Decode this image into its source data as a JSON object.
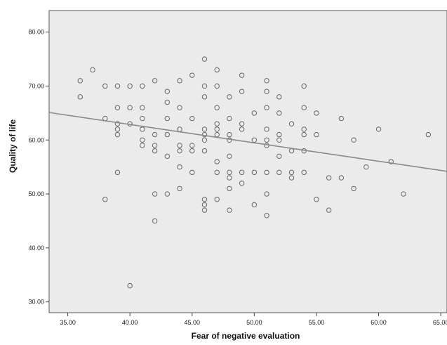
{
  "chart_data": {
    "type": "scatter",
    "title": "",
    "xlabel": "Fear of negative evaluation",
    "ylabel": "Quality of life",
    "xlim": [
      33.5,
      65.5
    ],
    "ylim": [
      28,
      84
    ],
    "x_ticks": [
      "35.00",
      "40.00",
      "45.00",
      "50.00",
      "55.00",
      "60.00",
      "65.00"
    ],
    "y_ticks": [
      "30.00",
      "40.00",
      "50.00",
      "60.00",
      "70.00",
      "80.00"
    ],
    "grid": false,
    "background_color": "#ebebeb",
    "marker_color": "#666666",
    "fit_line": {
      "x": [
        33.5,
        65.5
      ],
      "y": [
        65.1,
        54.2
      ]
    },
    "points": [
      [
        36,
        71
      ],
      [
        36,
        68
      ],
      [
        37,
        73
      ],
      [
        38,
        70
      ],
      [
        38,
        64
      ],
      [
        38,
        49
      ],
      [
        39,
        70
      ],
      [
        39,
        66
      ],
      [
        39,
        63
      ],
      [
        39,
        62
      ],
      [
        39,
        61
      ],
      [
        39,
        54
      ],
      [
        40,
        70
      ],
      [
        40,
        66
      ],
      [
        40,
        63
      ],
      [
        40,
        33
      ],
      [
        41,
        70
      ],
      [
        41,
        66
      ],
      [
        41,
        64
      ],
      [
        41,
        62
      ],
      [
        41,
        60
      ],
      [
        41,
        59
      ],
      [
        42,
        71
      ],
      [
        42,
        61
      ],
      [
        42,
        59
      ],
      [
        42,
        58
      ],
      [
        42,
        50
      ],
      [
        42,
        45
      ],
      [
        43,
        69
      ],
      [
        43,
        67
      ],
      [
        43,
        64
      ],
      [
        43,
        61
      ],
      [
        43,
        57
      ],
      [
        43,
        50
      ],
      [
        44,
        71
      ],
      [
        44,
        66
      ],
      [
        44,
        62
      ],
      [
        44,
        59
      ],
      [
        44,
        58
      ],
      [
        44,
        55
      ],
      [
        44,
        51
      ],
      [
        45,
        72
      ],
      [
        45,
        64
      ],
      [
        45,
        59
      ],
      [
        45,
        58
      ],
      [
        45,
        54
      ],
      [
        46,
        75
      ],
      [
        46,
        70
      ],
      [
        46,
        68
      ],
      [
        46,
        62
      ],
      [
        46,
        61
      ],
      [
        46,
        60
      ],
      [
        46,
        58
      ],
      [
        46,
        49
      ],
      [
        46,
        48
      ],
      [
        46,
        47
      ],
      [
        47,
        73
      ],
      [
        47,
        70
      ],
      [
        47,
        66
      ],
      [
        47,
        63
      ],
      [
        47,
        62
      ],
      [
        47,
        61
      ],
      [
        47,
        56
      ],
      [
        47,
        54
      ],
      [
        47,
        49
      ],
      [
        48,
        68
      ],
      [
        48,
        64
      ],
      [
        48,
        61
      ],
      [
        48,
        60
      ],
      [
        48,
        57
      ],
      [
        48,
        54
      ],
      [
        48,
        53
      ],
      [
        48,
        51
      ],
      [
        48,
        47
      ],
      [
        49,
        72
      ],
      [
        49,
        69
      ],
      [
        49,
        63
      ],
      [
        49,
        62
      ],
      [
        49,
        54
      ],
      [
        49,
        52
      ],
      [
        50,
        65
      ],
      [
        50,
        60
      ],
      [
        50,
        54
      ],
      [
        50,
        48
      ],
      [
        51,
        71
      ],
      [
        51,
        69
      ],
      [
        51,
        66
      ],
      [
        51,
        62
      ],
      [
        51,
        60
      ],
      [
        51,
        59
      ],
      [
        51,
        54
      ],
      [
        51,
        50
      ],
      [
        51,
        46
      ],
      [
        52,
        68
      ],
      [
        52,
        65
      ],
      [
        52,
        61
      ],
      [
        52,
        60
      ],
      [
        52,
        57
      ],
      [
        52,
        54
      ],
      [
        53,
        63
      ],
      [
        53,
        58
      ],
      [
        53,
        54
      ],
      [
        53,
        53
      ],
      [
        54,
        70
      ],
      [
        54,
        66
      ],
      [
        54,
        62
      ],
      [
        54,
        61
      ],
      [
        54,
        58
      ],
      [
        54,
        54
      ],
      [
        55,
        65
      ],
      [
        55,
        61
      ],
      [
        55,
        49
      ],
      [
        56,
        53
      ],
      [
        56,
        47
      ],
      [
        57,
        64
      ],
      [
        57,
        53
      ],
      [
        58,
        60
      ],
      [
        58,
        51
      ],
      [
        59,
        55
      ],
      [
        60,
        62
      ],
      [
        61,
        56
      ],
      [
        62,
        50
      ],
      [
        64,
        61
      ]
    ]
  }
}
